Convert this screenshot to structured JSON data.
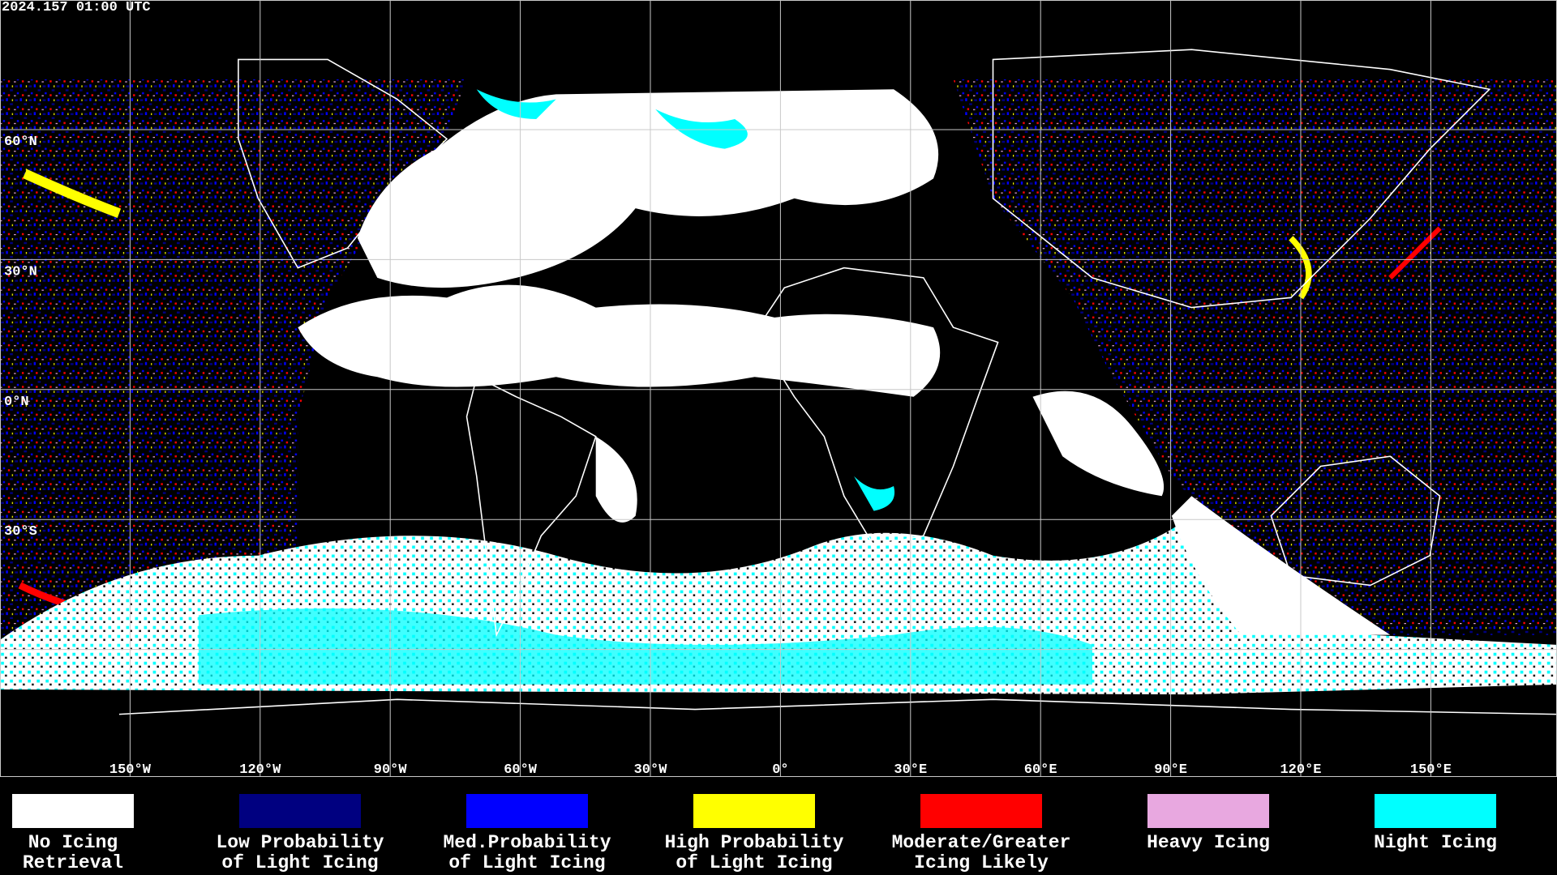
{
  "header": {
    "timestamp": "2024.157 01:00 UTC"
  },
  "map": {
    "latitude_labels": [
      "60°N",
      "30°N",
      "0°N",
      "30°S"
    ],
    "longitude_labels": [
      "150°W",
      "120°W",
      "90°W",
      "60°W",
      "30°W",
      "0°",
      "30°E",
      "60°E",
      "90°E",
      "120°E",
      "150°E"
    ]
  },
  "legend": [
    {
      "color": "#ffffff",
      "lines": [
        "No Icing",
        "Retrieval"
      ]
    },
    {
      "color": "#000080",
      "lines": [
        "Low Probability",
        "of Light Icing"
      ]
    },
    {
      "color": "#0000ff",
      "lines": [
        "Med.Probability",
        "of Light Icing"
      ]
    },
    {
      "color": "#ffff00",
      "lines": [
        "High Probability",
        "of Light Icing"
      ]
    },
    {
      "color": "#ff0000",
      "lines": [
        "Moderate/Greater",
        "Icing Likely"
      ]
    },
    {
      "color": "#e8a8e0",
      "lines": [
        "Heavy Icing"
      ]
    },
    {
      "color": "#00ffff",
      "lines": [
        "Night Icing"
      ]
    }
  ]
}
